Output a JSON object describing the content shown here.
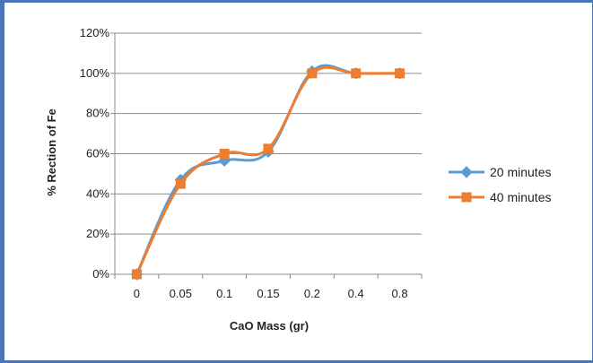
{
  "chart_data": {
    "type": "line",
    "title": "",
    "xlabel": "CaO Mass (gr)",
    "ylabel": "% Rection of  Fe",
    "categories": [
      "0",
      "0.05",
      "0.1",
      "0.15",
      "0.2",
      "0.4",
      "0.8"
    ],
    "ylim": [
      0,
      1.2
    ],
    "yticks": [
      "0%",
      "20%",
      "40%",
      "60%",
      "80%",
      "100%",
      "120%"
    ],
    "grid": true,
    "legend_position": "right",
    "series": [
      {
        "name": "20 minutes",
        "color": "#5b9bd5",
        "marker": "diamond",
        "values": [
          0,
          0.47,
          0.565,
          0.61,
          1.01,
          1.0,
          1.0
        ]
      },
      {
        "name": "40 minutes",
        "color": "#ed7d31",
        "marker": "square",
        "values": [
          0,
          0.45,
          0.6,
          0.625,
          1.0,
          1.0,
          1.0
        ]
      }
    ]
  }
}
